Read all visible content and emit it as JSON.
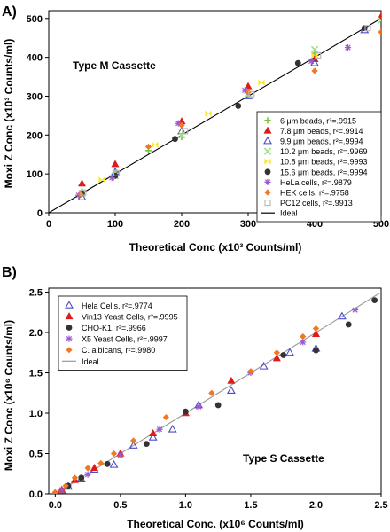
{
  "figure": {
    "panels": [
      {
        "label": "A)",
        "title": "Type M Cassette",
        "xlabel": "Theoretical Conc (x10³ Counts/ml)",
        "ylabel": "Moxi Z Conc (x10³ Counts/ml)"
      },
      {
        "label": "B)",
        "title": "Type S Cassette",
        "xlabel": "Theoretical Conc. (x10⁶ Counts/ml)",
        "ylabel": "Moxi Z Conc (x10⁶ Counts/ml)"
      }
    ]
  },
  "chart_data": [
    {
      "type": "scatter",
      "title": "Type M Cassette",
      "xlabel": "Theoretical Conc (x10³ Counts/ml)",
      "ylabel": "Moxi Z Conc (x10³ Counts/ml)",
      "xlim": [
        0,
        500
      ],
      "ylim": [
        0,
        520
      ],
      "xticks": [
        0,
        100,
        200,
        300,
        400,
        500
      ],
      "yticks": [
        0,
        100,
        200,
        300,
        400,
        500
      ],
      "legend_position": "bottom-right",
      "series": [
        {
          "name": "6 μm beads, r²=.9915",
          "marker": "plus",
          "color": "#7cc242",
          "x": [
            50,
            100,
            150,
            200,
            300,
            400
          ],
          "y": [
            55,
            100,
            160,
            195,
            300,
            410
          ]
        },
        {
          "name": "7.8 μm beads, r²=.9914",
          "marker": "triangle",
          "color": "#e0191b",
          "x": [
            50,
            100,
            200,
            300,
            400,
            500
          ],
          "y": [
            75,
            125,
            235,
            325,
            395,
            505
          ]
        },
        {
          "name": "9.9 μm beads, r²=.9994",
          "marker": "triangle-open",
          "color": "#4b4bc9",
          "x": [
            50,
            100,
            200,
            300,
            400,
            475
          ],
          "y": [
            40,
            105,
            210,
            300,
            385,
            470
          ]
        },
        {
          "name": "10.2 μm beads, r²=.9969",
          "marker": "cross",
          "color": "#9ee28a",
          "x": [
            50,
            100,
            200,
            300,
            400,
            500
          ],
          "y": [
            50,
            95,
            200,
            305,
            420,
            495
          ]
        },
        {
          "name": "10.8 μm beads, r²=.9993",
          "marker": "bowtie",
          "color": "#f7e82a",
          "x": [
            80,
            160,
            240,
            320,
            400
          ],
          "y": [
            85,
            175,
            255,
            335,
            405
          ]
        },
        {
          "name": "15.6 μm beads, r²=.9994",
          "marker": "circle",
          "color": "#333333",
          "x": [
            50,
            100,
            190,
            285,
            375,
            475
          ],
          "y": [
            50,
            95,
            190,
            275,
            385,
            475
          ]
        },
        {
          "name": "HeLa cells, r²=.9879",
          "marker": "star",
          "color": "#9a59d0",
          "x": [
            45,
            95,
            195,
            295,
            395,
            450
          ],
          "y": [
            45,
            90,
            230,
            315,
            390,
            425
          ]
        },
        {
          "name": "HEK cells, r²=.9758",
          "marker": "diamond",
          "color": "#f07820",
          "x": [
            48,
            150,
            200,
            300,
            400,
            500
          ],
          "y": [
            48,
            170,
            225,
            310,
            365,
            465
          ]
        },
        {
          "name": "PC12 cells, r²=.9913",
          "marker": "square-open",
          "color": "#b5b5b5",
          "x": [
            52,
            102,
            205,
            305,
            405,
            480
          ],
          "y": [
            52,
            102,
            210,
            305,
            405,
            475
          ]
        },
        {
          "name": "Ideal",
          "marker": "line",
          "color": "#000000",
          "x": [
            0,
            500
          ],
          "y": [
            0,
            500
          ]
        }
      ]
    },
    {
      "type": "scatter",
      "title": "Type S Cassette",
      "xlabel": "Theoretical Conc. (x10⁶ Counts/ml)",
      "ylabel": "Moxi Z Conc (x10⁶ Counts/ml)",
      "xlim": [
        -0.05,
        2.5
      ],
      "ylim": [
        0,
        2.55
      ],
      "xticks": [
        0.0,
        0.5,
        1.0,
        1.5,
        2.0,
        2.5
      ],
      "yticks": [
        0.0,
        0.5,
        1.0,
        1.5,
        2.0,
        2.5
      ],
      "legend_position": "top-left",
      "series": [
        {
          "name": "Hela Cells, r²=.9774",
          "marker": "triangle-open",
          "color": "#4b4bc9",
          "x": [
            0.05,
            0.1,
            0.2,
            0.3,
            0.45,
            0.6,
            0.75,
            0.9,
            1.1,
            1.35,
            1.6,
            1.8,
            2.0,
            2.2
          ],
          "y": [
            0.04,
            0.09,
            0.18,
            0.3,
            0.36,
            0.6,
            0.7,
            0.8,
            1.1,
            1.28,
            1.58,
            1.75,
            1.8,
            2.2
          ]
        },
        {
          "name": "Vin13 Yeast Cells, r²=.9995",
          "marker": "triangle",
          "color": "#e0191b",
          "x": [
            0.05,
            0.15,
            0.3,
            0.5,
            0.75,
            1.0,
            1.35,
            1.7,
            2.0
          ],
          "y": [
            0.05,
            0.17,
            0.32,
            0.5,
            0.75,
            1.0,
            1.4,
            1.68,
            1.98
          ]
        },
        {
          "name": "CHO-K1, r²=.9966",
          "marker": "circle",
          "color": "#333333",
          "x": [
            0.1,
            0.2,
            0.4,
            0.7,
            1.0,
            1.25,
            1.75,
            2.0,
            2.25,
            2.45
          ],
          "y": [
            0.1,
            0.2,
            0.37,
            0.62,
            1.02,
            1.1,
            1.72,
            1.78,
            2.1,
            2.4
          ]
        },
        {
          "name": "X5 Yeast Cells, r²=.9997",
          "marker": "star",
          "color": "#9a59d0",
          "x": [
            0.05,
            0.25,
            0.5,
            0.8,
            1.1,
            1.5,
            1.9,
            2.3
          ],
          "y": [
            0.05,
            0.24,
            0.48,
            0.8,
            1.08,
            1.5,
            1.88,
            2.28
          ]
        },
        {
          "name": "C. albicans, r²=.9980",
          "marker": "diamond",
          "color": "#f07820",
          "x": [
            0.0,
            0.08,
            0.15,
            0.25,
            0.35,
            0.45,
            0.6,
            0.85,
            1.2,
            1.5,
            1.7,
            1.9,
            2.0
          ],
          "y": [
            0.02,
            0.1,
            0.2,
            0.32,
            0.38,
            0.5,
            0.66,
            0.95,
            1.25,
            1.52,
            1.75,
            1.95,
            2.05
          ]
        },
        {
          "name": "Ideal",
          "marker": "line",
          "color": "#999999",
          "x": [
            -0.05,
            2.5
          ],
          "y": [
            -0.05,
            2.5
          ]
        }
      ]
    }
  ]
}
